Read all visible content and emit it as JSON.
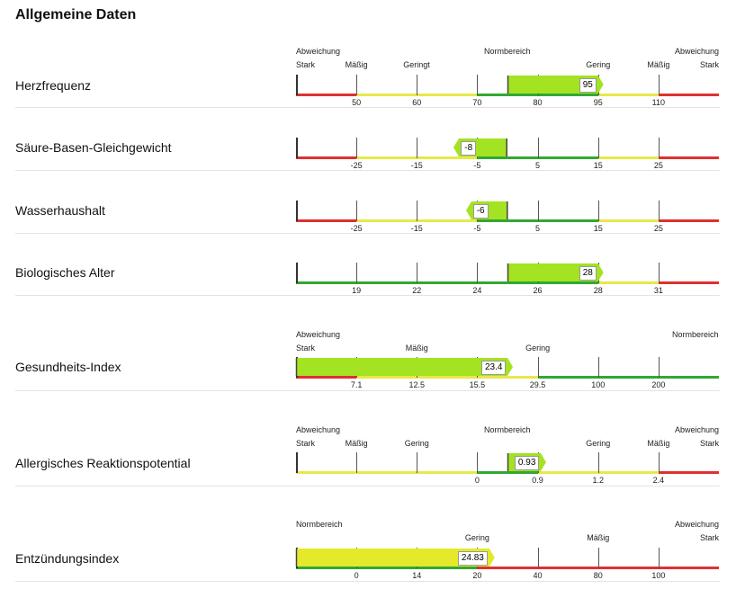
{
  "title": "Allgemeine Daten",
  "colors": {
    "red": "#e03030",
    "yellow": "#e8e84a",
    "green": "#32a832",
    "bar_lime": "#a3e322",
    "bar_yellow": "#e4ea2a"
  },
  "parameters": [
    {
      "name": "Herzfrequenz",
      "header": [
        {
          "text": "Abweichung",
          "align": "left",
          "row": 0
        },
        {
          "text": "Stark",
          "align": "left",
          "row": 1
        },
        {
          "text": "Mäßig",
          "col": 1,
          "row": 1
        },
        {
          "text": "Geringt",
          "col": 2,
          "row": 1
        },
        {
          "text": "Normbereich",
          "col": 3.5,
          "row": 0
        },
        {
          "text": "Gering",
          "col": 5,
          "row": 1
        },
        {
          "text": "Mäßig",
          "col": 6,
          "row": 1
        },
        {
          "text": "Abweichung",
          "align": "right",
          "row": 0
        },
        {
          "text": "Stark",
          "align": "right",
          "row": 1
        }
      ],
      "ticks": [
        "50",
        "60",
        "70",
        "80",
        "95",
        "110"
      ],
      "segments": [
        "red",
        "yellow",
        "yellow",
        "green",
        "green",
        "yellow",
        "red"
      ],
      "value": "95",
      "bar_from": 3.5,
      "bar_to": 5,
      "bar_color": "bar_lime"
    },
    {
      "name": "Säure-Basen-Gleichgewicht",
      "header": [],
      "ticks": [
        "-25",
        "-15",
        "-5",
        "5",
        "15",
        "25"
      ],
      "segments": [
        "red",
        "yellow",
        "yellow",
        "green",
        "green",
        "yellow",
        "red"
      ],
      "value": "-8",
      "bar_from": 3.5,
      "bar_to": 2.7,
      "bar_color": "bar_lime"
    },
    {
      "name": "Wasserhaushalt",
      "header": [],
      "ticks": [
        "-25",
        "-15",
        "-5",
        "5",
        "15",
        "25"
      ],
      "segments": [
        "red",
        "yellow",
        "yellow",
        "green",
        "green",
        "yellow",
        "red"
      ],
      "value": "-6",
      "bar_from": 3.5,
      "bar_to": 2.9,
      "bar_color": "bar_lime"
    },
    {
      "name": "Biologisches Alter",
      "header": [],
      "ticks": [
        "19",
        "22",
        "24",
        "26",
        "28",
        "31"
      ],
      "segments": [
        "green",
        "green",
        "green",
        "green",
        "green",
        "yellow",
        "red"
      ],
      "value": "28",
      "bar_from": 3.5,
      "bar_to": 5,
      "bar_color": "bar_lime"
    },
    {
      "name": "Gesundheits-Index",
      "header": [
        {
          "text": "Abweichung",
          "align": "left",
          "row": 0
        },
        {
          "text": "Stark",
          "align": "left",
          "row": 1
        },
        {
          "text": "Mäßig",
          "col": 2,
          "row": 1
        },
        {
          "text": "Gering",
          "col": 4,
          "row": 1
        },
        {
          "text": "Normbereich",
          "align": "right",
          "row": 0
        }
      ],
      "ticks": [
        "7.1",
        "12.5",
        "15.5",
        "29.5",
        "100",
        "200"
      ],
      "segments": [
        "red",
        "yellow",
        "yellow",
        "yellow",
        "green",
        "green",
        "green"
      ],
      "value": "23.4",
      "bar_from": 0,
      "bar_to": 3.5,
      "bar_color": "bar_lime"
    },
    {
      "name": "Allergisches Reaktionspotential",
      "header": [
        {
          "text": "Abweichung",
          "align": "left",
          "row": 0
        },
        {
          "text": "Stark",
          "align": "left",
          "row": 1
        },
        {
          "text": "Mäßig",
          "col": 1,
          "row": 1
        },
        {
          "text": "Gering",
          "col": 2,
          "row": 1
        },
        {
          "text": "Normbereich",
          "col": 3.5,
          "row": 0
        },
        {
          "text": "Gering",
          "col": 5,
          "row": 1
        },
        {
          "text": "Mäßig",
          "col": 6,
          "row": 1
        },
        {
          "text": "Abweichung",
          "align": "right",
          "row": 0
        },
        {
          "text": "Stark",
          "align": "right",
          "row": 1
        }
      ],
      "ticks": [
        "",
        "",
        "0",
        "0.9",
        "1.2",
        "2.4"
      ],
      "segments": [
        "yellow",
        "yellow",
        "yellow",
        "green",
        "yellow",
        "yellow",
        "red"
      ],
      "value": "0.93",
      "bar_from": 3.5,
      "bar_to": 4.05,
      "bar_color": "bar_lime"
    },
    {
      "name": "Entzündungsindex",
      "header": [
        {
          "text": "Normbereich",
          "align": "left",
          "row": 0
        },
        {
          "text": "Gering",
          "col": 3,
          "row": 1
        },
        {
          "text": "Mäßig",
          "col": 5,
          "row": 1
        },
        {
          "text": "Abweichung",
          "align": "right",
          "row": 0
        },
        {
          "text": "Stark",
          "align": "right",
          "row": 1
        }
      ],
      "ticks": [
        "0",
        "14",
        "20",
        "40",
        "80",
        "100"
      ],
      "segments": [
        "green",
        "green",
        "green",
        "red",
        "red",
        "red",
        "red"
      ],
      "value": "24.83",
      "bar_from": 0,
      "bar_to": 3.2,
      "bar_color": "bar_yellow"
    }
  ]
}
